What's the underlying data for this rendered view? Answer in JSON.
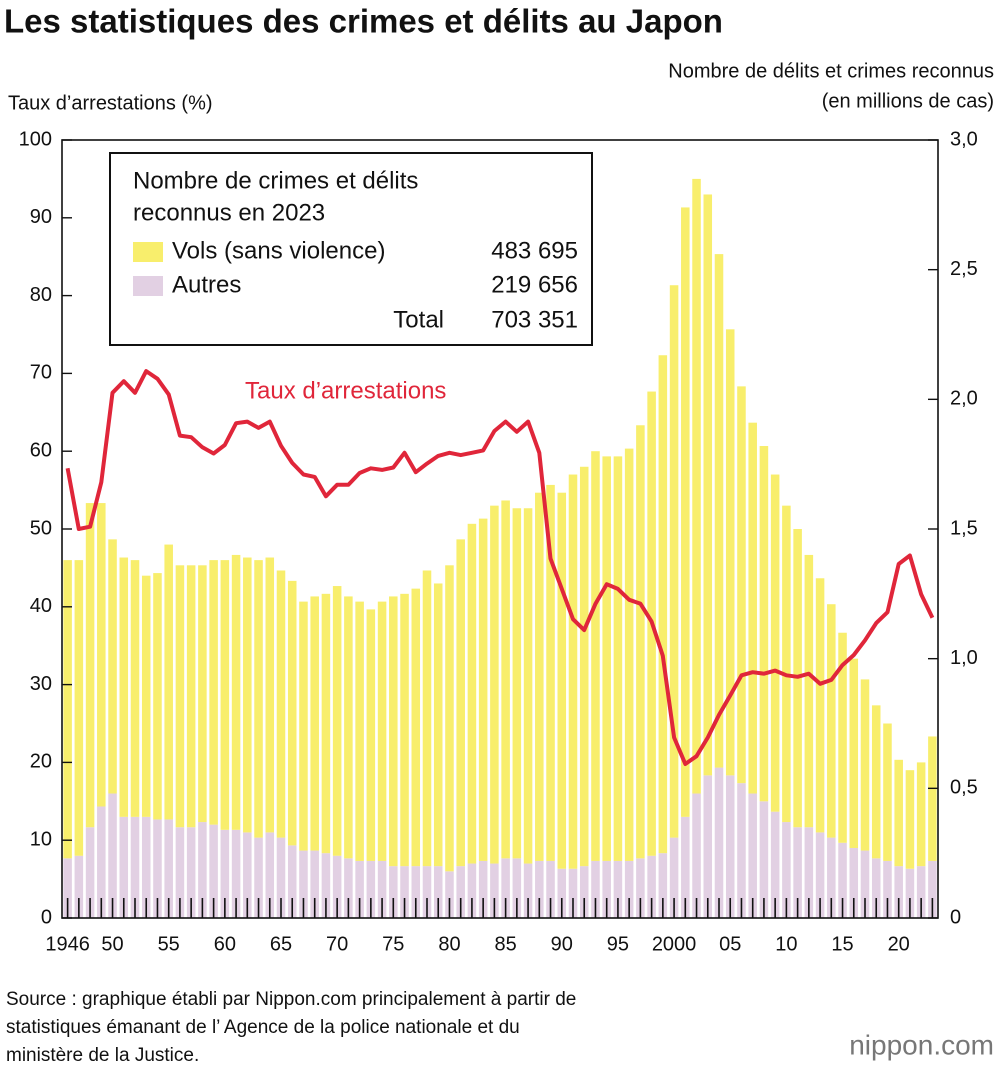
{
  "chart_data": {
    "type": "bar",
    "title": "Les statistiques des crimes et délits au Japon",
    "ylabel": "Taux d’arrestations (%)",
    "y2label": [
      "Nombre de délits et crimes reconnus",
      "(en millions de cas)"
    ],
    "legend_title": [
      "Nombre de crimes et délits",
      "reconnus en 2023"
    ],
    "legend_values": [
      "483 695",
      "219 656"
    ],
    "total_label": "Total",
    "total_value": "703 351",
    "source": [
      "Source : graphique établi par Nippon.com principalement à partir de",
      "statistiques émanant de l’  Agence de la police nationale et du",
      "ministère de la Justice."
    ],
    "brand": "nippon.com",
    "categories": [
      "1946",
      null,
      null,
      null,
      "50",
      null,
      null,
      null,
      null,
      "55",
      null,
      null,
      null,
      null,
      "60",
      null,
      null,
      null,
      null,
      "65",
      null,
      null,
      null,
      null,
      "70",
      null,
      null,
      null,
      null,
      "75",
      null,
      null,
      null,
      null,
      "80",
      null,
      null,
      null,
      null,
      "85",
      null,
      null,
      null,
      null,
      "90",
      null,
      null,
      null,
      null,
      "95",
      null,
      null,
      null,
      null,
      "2000",
      null,
      null,
      null,
      null,
      "05",
      null,
      null,
      null,
      null,
      "10",
      null,
      null,
      null,
      null,
      "15",
      null,
      null,
      null,
      null,
      "20",
      null,
      null,
      null
    ],
    "ylim": [
      0,
      100
    ],
    "yticks": [
      0,
      10,
      20,
      30,
      40,
      50,
      60,
      70,
      80,
      90,
      100
    ],
    "y2lim": [
      0,
      3
    ],
    "y2ticks": [
      0,
      {
        "value": 0.5,
        "label": "0,5"
      },
      {
        "value": 1,
        "label": "1,0"
      },
      {
        "value": 1.5,
        "label": "1,5"
      },
      {
        "value": 2,
        "label": "2,0"
      },
      {
        "value": 2.5,
        "label": "2,5"
      },
      {
        "value": 3,
        "label": "3,0"
      }
    ],
    "series": [
      {
        "name": "Vols (sans violence)",
        "color": "#f8ee6c",
        "axis": "y2",
        "type": "bar",
        "values": [
          1.15,
          1.14,
          1.25,
          1.17,
          0.98,
          1.0,
          0.99,
          0.93,
          0.95,
          1.06,
          1.01,
          1.01,
          0.99,
          1.02,
          1.04,
          1.06,
          1.06,
          1.07,
          1.06,
          1.03,
          1.02,
          0.96,
          0.98,
          1.0,
          1.04,
          1.01,
          1.0,
          0.97,
          1.0,
          1.04,
          1.05,
          1.07,
          1.14,
          1.09,
          1.18,
          1.26,
          1.31,
          1.32,
          1.38,
          1.38,
          1.35,
          1.37,
          1.42,
          1.45,
          1.45,
          1.52,
          1.54,
          1.58,
          1.56,
          1.56,
          1.59,
          1.67,
          1.79,
          1.92,
          2.13,
          2.35,
          2.37,
          2.24,
          1.98,
          1.72,
          1.53,
          1.43,
          1.37,
          1.3,
          1.22,
          1.15,
          1.05,
          0.98,
          0.9,
          0.81,
          0.73,
          0.66,
          0.59,
          0.53,
          0.41,
          0.38,
          0.4,
          0.48
        ]
      },
      {
        "name": "Autres",
        "color": "#e2d0e3",
        "axis": "y2",
        "type": "bar",
        "values": [
          0.23,
          0.24,
          0.35,
          0.43,
          0.48,
          0.39,
          0.39,
          0.39,
          0.38,
          0.38,
          0.35,
          0.35,
          0.37,
          0.36,
          0.34,
          0.34,
          0.33,
          0.31,
          0.33,
          0.31,
          0.28,
          0.26,
          0.26,
          0.25,
          0.24,
          0.23,
          0.22,
          0.22,
          0.22,
          0.2,
          0.2,
          0.2,
          0.2,
          0.2,
          0.18,
          0.2,
          0.21,
          0.22,
          0.21,
          0.23,
          0.23,
          0.21,
          0.22,
          0.22,
          0.19,
          0.19,
          0.2,
          0.22,
          0.22,
          0.22,
          0.22,
          0.23,
          0.24,
          0.25,
          0.31,
          0.39,
          0.48,
          0.55,
          0.58,
          0.55,
          0.52,
          0.48,
          0.45,
          0.41,
          0.37,
          0.35,
          0.35,
          0.33,
          0.31,
          0.29,
          0.27,
          0.26,
          0.23,
          0.22,
          0.2,
          0.19,
          0.2,
          0.22
        ]
      },
      {
        "name": "Taux d’arrestations",
        "color": "#e0263a",
        "axis": "y",
        "type": "line",
        "values": [
          57.8,
          50.0,
          50.3,
          56.0,
          67.5,
          69.0,
          67.5,
          70.3,
          69.3,
          67.3,
          62.0,
          61.8,
          60.5,
          59.7,
          60.8,
          63.6,
          63.8,
          63.0,
          63.8,
          60.7,
          58.5,
          57.0,
          56.7,
          54.2,
          55.7,
          55.7,
          57.2,
          57.8,
          57.6,
          57.9,
          59.8,
          57.3,
          58.4,
          59.4,
          59.8,
          59.5,
          59.8,
          60.1,
          62.6,
          63.8,
          62.5,
          63.8,
          59.8,
          46.2,
          42.3,
          38.4,
          37.0,
          40.4,
          42.9,
          42.3,
          40.9,
          40.4,
          38.1,
          33.7,
          23.2,
          19.8,
          20.8,
          23.2,
          26.1,
          28.6,
          31.2,
          31.6,
          31.4,
          31.8,
          31.2,
          31.0,
          31.4,
          30.1,
          30.6,
          32.5,
          33.8,
          35.7,
          37.9,
          39.3,
          45.5,
          46.6,
          41.6,
          38.6
        ]
      }
    ]
  }
}
